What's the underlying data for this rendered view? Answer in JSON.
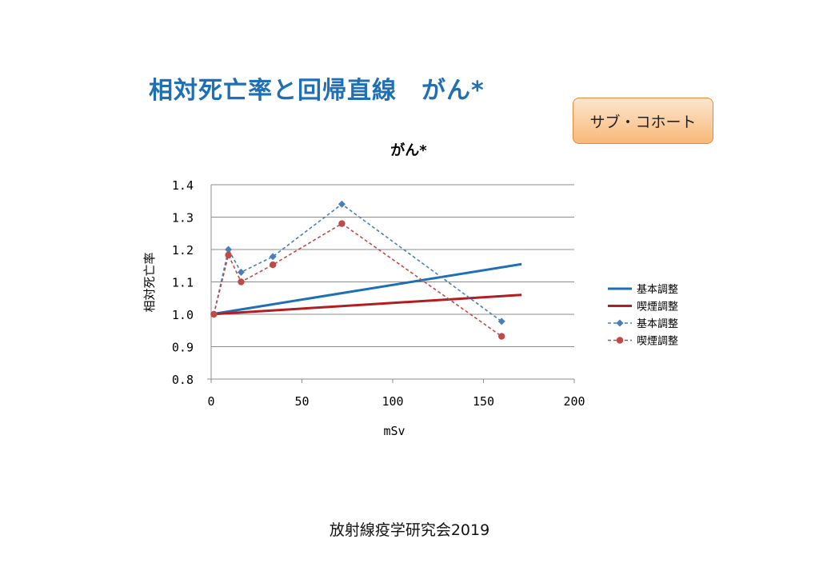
{
  "slide": {
    "title": "相対死亡率と回帰直線　がん*",
    "badge": "サブ・コホート",
    "footer": "放射線疫学研究会2019"
  },
  "chart_data": {
    "type": "line",
    "title": "がん*",
    "xlabel": "mSv",
    "ylabel": "相対死亡率",
    "xlim": [
      0,
      200
    ],
    "ylim": [
      0.8,
      1.4
    ],
    "x_ticks": [
      0,
      50,
      100,
      150,
      200
    ],
    "y_ticks": [
      0.8,
      0.9,
      1.0,
      1.1,
      1.2,
      1.3,
      1.4
    ],
    "x_tick_labels": [
      "0",
      "50",
      "100",
      "150",
      "200"
    ],
    "y_tick_labels": [
      "0.8",
      "0.9",
      "1.0",
      "1.1",
      "1.2",
      "1.3",
      "1.4"
    ],
    "grid": "horizontal",
    "legend_position": "right",
    "series": [
      {
        "name": "基本調整",
        "style": "solid",
        "marker": "none",
        "color": "#1f6fb5",
        "x": [
          0,
          171
        ],
        "y": [
          1.0,
          1.155
        ]
      },
      {
        "name": "喫煙調整",
        "style": "solid",
        "marker": "none",
        "color": "#b01e23",
        "x": [
          0,
          171
        ],
        "y": [
          1.0,
          1.06
        ]
      },
      {
        "name": "基本調整",
        "style": "dashed",
        "marker": "diamond",
        "color": "#4a7ebb",
        "x": [
          1.5,
          9.5,
          16.5,
          34,
          72,
          160
        ],
        "y": [
          1.0,
          1.2,
          1.13,
          1.178,
          1.34,
          0.978
        ]
      },
      {
        "name": "喫煙調整",
        "style": "dashed",
        "marker": "circle",
        "color": "#be4b48",
        "x": [
          1.5,
          9.5,
          16.5,
          34,
          72,
          160
        ],
        "y": [
          1.0,
          1.183,
          1.1,
          1.153,
          1.28,
          0.932
        ]
      }
    ]
  }
}
